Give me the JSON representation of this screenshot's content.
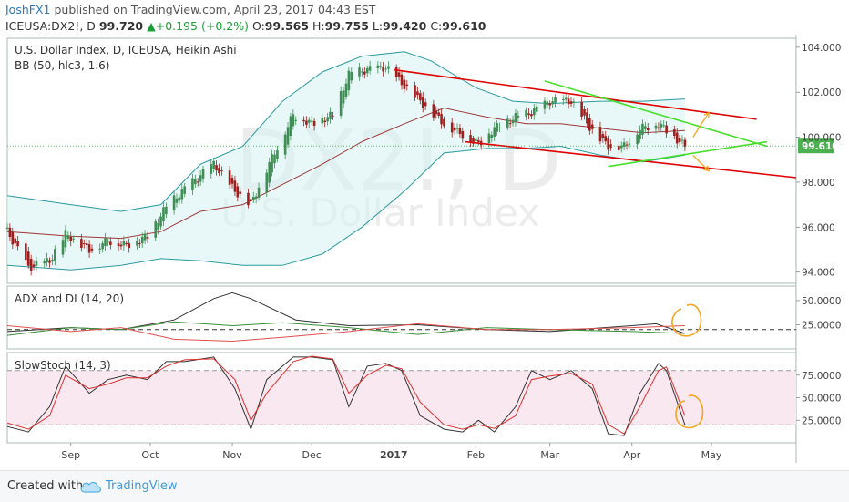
{
  "header": {
    "user": "JoshFX1",
    "published_text": "published on TradingView.com, April 23, 2017 04:43 EST",
    "symbol": "ICEUSA:DX2!, D",
    "last": "99.720",
    "change": "+0.195 (+0.2%)",
    "open_label": "O:",
    "open": "99.565",
    "high_label": "H:",
    "high": "99.755",
    "low_label": "L:",
    "low": "99.420",
    "close_label": "C:",
    "close": "99.610"
  },
  "footer": {
    "created_with": "Created with",
    "brand": "TradingView"
  },
  "colors": {
    "bull": "#3f8f55",
    "bear": "#a11e1e",
    "bb_fill": "#d9f2f2",
    "bb_band": "#2b9aa0",
    "bb_mid": "#a03a3a",
    "channel": "#e00000",
    "wedge": "#46e02a",
    "arrow": "#f5a623",
    "price_tag": "#4caf50",
    "adx": "#333333",
    "di_plus": "#3a8f3a",
    "di_minus": "#e05050",
    "stoch_k": "#333333",
    "stoch_d": "#e03030",
    "stoch_band": "#f9e8ef"
  },
  "chart_data": [
    {
      "type": "candlestick",
      "title": "U.S. Dollar Index, D, ICEUSA, Heikin Ashi",
      "indicator": "BB (50, hlc3, 1.6)",
      "watermark_symbol": "DX2!, D",
      "watermark_name": "U.S. Dollar Index",
      "y_ticks": [
        "104.000",
        "102.000",
        "100.000",
        "98.000",
        "96.000",
        "94.000"
      ],
      "ylim": [
        93.5,
        104.4
      ],
      "last_price_label": "99.610",
      "last_price": 99.61,
      "x_labels": [
        "Sep",
        "Oct",
        "Nov",
        "Dec",
        "2017",
        "Feb",
        "Mar",
        "Apr",
        "May"
      ],
      "x_label_dates": [
        "2016-09-01",
        "2016-10-01",
        "2016-11-01",
        "2016-12-01",
        "2017-01-01",
        "2017-02-01",
        "2017-03-01",
        "2017-04-01",
        "2017-05-01"
      ],
      "xlim": [
        "2016-08-08",
        "2017-06-02"
      ],
      "trend_points": [
        [
          "2016-08-08",
          95.8
        ],
        [
          "2016-08-16",
          94.2
        ],
        [
          "2016-08-24",
          94.5
        ],
        [
          "2016-08-30",
          95.7
        ],
        [
          "2016-09-08",
          95.0
        ],
        [
          "2016-09-15",
          95.4
        ],
        [
          "2016-09-22",
          95.2
        ],
        [
          "2016-09-30",
          95.6
        ],
        [
          "2016-10-07",
          96.9
        ],
        [
          "2016-10-14",
          97.7
        ],
        [
          "2016-10-25",
          98.8
        ],
        [
          "2016-11-02",
          97.6
        ],
        [
          "2016-11-08",
          97.0
        ],
        [
          "2016-11-14",
          98.6
        ],
        [
          "2016-11-24",
          101.0
        ],
        [
          "2016-12-01",
          100.6
        ],
        [
          "2016-12-09",
          101.0
        ],
        [
          "2016-12-15",
          102.8
        ],
        [
          "2016-12-22",
          103.0
        ],
        [
          "2016-12-29",
          103.1
        ],
        [
          "2017-01-04",
          102.4
        ],
        [
          "2017-01-11",
          101.6
        ],
        [
          "2017-01-20",
          100.6
        ],
        [
          "2017-01-27",
          100.1
        ],
        [
          "2017-02-02",
          99.7
        ],
        [
          "2017-02-08",
          100.4
        ],
        [
          "2017-02-16",
          100.9
        ],
        [
          "2017-02-22",
          101.1
        ],
        [
          "2017-03-01",
          101.6
        ],
        [
          "2017-03-09",
          101.6
        ],
        [
          "2017-03-17",
          100.3
        ],
        [
          "2017-03-23",
          99.6
        ],
        [
          "2017-03-29",
          99.6
        ],
        [
          "2017-04-04",
          100.4
        ],
        [
          "2017-04-11",
          100.6
        ],
        [
          "2017-04-14",
          100.3
        ],
        [
          "2017-04-21",
          99.6
        ]
      ],
      "upper_band": [
        [
          "2016-08-08",
          97.4
        ],
        [
          "2016-09-01",
          97.0
        ],
        [
          "2016-09-20",
          96.7
        ],
        [
          "2016-10-05",
          97.0
        ],
        [
          "2016-10-20",
          98.8
        ],
        [
          "2016-11-05",
          99.6
        ],
        [
          "2016-11-20",
          101.6
        ],
        [
          "2016-12-05",
          102.9
        ],
        [
          "2016-12-20",
          103.6
        ],
        [
          "2017-01-05",
          103.8
        ],
        [
          "2017-01-15",
          103.4
        ],
        [
          "2017-02-01",
          102.2
        ],
        [
          "2017-02-15",
          101.6
        ],
        [
          "2017-03-01",
          101.5
        ],
        [
          "2017-03-20",
          101.6
        ],
        [
          "2017-04-05",
          101.6
        ],
        [
          "2017-04-21",
          101.7
        ]
      ],
      "lower_band": [
        [
          "2016-08-08",
          94.3
        ],
        [
          "2016-09-01",
          94.1
        ],
        [
          "2016-09-20",
          94.3
        ],
        [
          "2016-10-05",
          94.6
        ],
        [
          "2016-10-20",
          94.5
        ],
        [
          "2016-11-05",
          94.3
        ],
        [
          "2016-11-20",
          94.3
        ],
        [
          "2016-12-05",
          94.8
        ],
        [
          "2016-12-20",
          96.0
        ],
        [
          "2017-01-05",
          97.6
        ],
        [
          "2017-01-20",
          99.3
        ],
        [
          "2017-02-05",
          99.5
        ],
        [
          "2017-02-20",
          99.5
        ],
        [
          "2017-03-05",
          99.6
        ],
        [
          "2017-03-20",
          99.2
        ],
        [
          "2017-04-05",
          98.9
        ],
        [
          "2017-04-21",
          99.2
        ]
      ],
      "middle_band": [
        [
          "2016-08-08",
          95.8
        ],
        [
          "2016-09-01",
          95.6
        ],
        [
          "2016-09-20",
          95.5
        ],
        [
          "2016-10-05",
          95.8
        ],
        [
          "2016-10-20",
          96.7
        ],
        [
          "2016-11-05",
          97.0
        ],
        [
          "2016-11-20",
          97.9
        ],
        [
          "2016-12-05",
          98.8
        ],
        [
          "2016-12-20",
          99.8
        ],
        [
          "2017-01-05",
          100.6
        ],
        [
          "2017-01-20",
          101.3
        ],
        [
          "2017-02-05",
          100.9
        ],
        [
          "2017-02-20",
          100.6
        ],
        [
          "2017-03-05",
          100.6
        ],
        [
          "2017-03-20",
          100.4
        ],
        [
          "2017-04-05",
          100.2
        ],
        [
          "2017-04-21",
          100.3
        ]
      ],
      "channel_lines": [
        [
          [
            "2017-01-01",
            103.0
          ],
          [
            "2017-05-18",
            100.8
          ]
        ],
        [
          [
            "2017-01-28",
            99.8
          ],
          [
            "2017-06-02",
            98.2
          ]
        ]
      ],
      "wedge_lines": [
        [
          [
            "2017-02-27",
            102.5
          ],
          [
            "2017-05-22",
            99.6
          ]
        ],
        [
          [
            "2017-03-23",
            98.7
          ],
          [
            "2017-05-22",
            99.8
          ]
        ]
      ],
      "arrows": [
        [
          [
            "2017-04-24",
            100.0
          ],
          [
            "2017-04-30",
            101.1
          ]
        ],
        [
          [
            "2017-04-24",
            99.2
          ],
          [
            "2017-04-30",
            98.5
          ]
        ]
      ]
    },
    {
      "type": "line",
      "title": "ADX and DI (14, 20)",
      "y_ticks": [
        "50.0000",
        "25.0000"
      ],
      "ylim": [
        0,
        65
      ],
      "reference_level": 20,
      "series": [
        {
          "key": "adx",
          "values": [
            [
              "2016-08-08",
              18
            ],
            [
              "2016-09-01",
              22
            ],
            [
              "2016-09-20",
              20
            ],
            [
              "2016-10-10",
              30
            ],
            [
              "2016-10-25",
              52
            ],
            [
              "2016-11-01",
              58
            ],
            [
              "2016-11-08",
              52
            ],
            [
              "2016-11-25",
              30
            ],
            [
              "2016-12-15",
              24
            ],
            [
              "2017-01-10",
              25
            ],
            [
              "2017-02-05",
              20
            ],
            [
              "2017-03-01",
              18
            ],
            [
              "2017-04-01",
              24
            ],
            [
              "2017-04-10",
              26
            ],
            [
              "2017-04-21",
              16
            ]
          ]
        },
        {
          "key": "di_plus",
          "values": [
            [
              "2016-08-08",
              14
            ],
            [
              "2016-09-01",
              22
            ],
            [
              "2016-09-20",
              20
            ],
            [
              "2016-10-10",
              28
            ],
            [
              "2016-11-01",
              24
            ],
            [
              "2016-11-20",
              27
            ],
            [
              "2016-12-15",
              22
            ],
            [
              "2017-01-10",
              15
            ],
            [
              "2017-02-05",
              22
            ],
            [
              "2017-03-01",
              20
            ],
            [
              "2017-04-01",
              18
            ],
            [
              "2017-04-21",
              16
            ]
          ]
        },
        {
          "key": "di_minus",
          "values": [
            [
              "2016-08-08",
              24
            ],
            [
              "2016-09-01",
              18
            ],
            [
              "2016-09-20",
              22
            ],
            [
              "2016-10-10",
              10
            ],
            [
              "2016-11-01",
              8
            ],
            [
              "2016-11-20",
              12
            ],
            [
              "2016-12-15",
              18
            ],
            [
              "2017-01-10",
              26
            ],
            [
              "2017-02-05",
              20
            ],
            [
              "2017-03-01",
              20
            ],
            [
              "2017-04-01",
              22
            ],
            [
              "2017-04-21",
              24
            ]
          ]
        }
      ]
    },
    {
      "type": "line",
      "title": "SlowStoch (14, 3)",
      "y_ticks": [
        "75.0000",
        "50.0000",
        "25.0000"
      ],
      "ylim": [
        0,
        100
      ],
      "upper_level": 80,
      "lower_level": 20,
      "series": [
        {
          "key": "stoch_k",
          "values": [
            [
              "2016-08-08",
              18
            ],
            [
              "2016-08-16",
              12
            ],
            [
              "2016-08-24",
              40
            ],
            [
              "2016-08-30",
              85
            ],
            [
              "2016-09-08",
              55
            ],
            [
              "2016-09-15",
              70
            ],
            [
              "2016-09-22",
              75
            ],
            [
              "2016-09-30",
              70
            ],
            [
              "2016-10-07",
              90
            ],
            [
              "2016-10-14",
              90
            ],
            [
              "2016-10-25",
              95
            ],
            [
              "2016-11-02",
              60
            ],
            [
              "2016-11-08",
              15
            ],
            [
              "2016-11-14",
              70
            ],
            [
              "2016-11-24",
              95
            ],
            [
              "2016-12-01",
              95
            ],
            [
              "2016-12-09",
              92
            ],
            [
              "2016-12-15",
              40
            ],
            [
              "2016-12-22",
              85
            ],
            [
              "2016-12-29",
              88
            ],
            [
              "2017-01-04",
              80
            ],
            [
              "2017-01-11",
              30
            ],
            [
              "2017-01-20",
              15
            ],
            [
              "2017-01-27",
              12
            ],
            [
              "2017-02-02",
              25
            ],
            [
              "2017-02-08",
              12
            ],
            [
              "2017-02-16",
              40
            ],
            [
              "2017-02-22",
              80
            ],
            [
              "2017-03-01",
              70
            ],
            [
              "2017-03-09",
              80
            ],
            [
              "2017-03-17",
              60
            ],
            [
              "2017-03-23",
              10
            ],
            [
              "2017-03-29",
              8
            ],
            [
              "2017-04-04",
              55
            ],
            [
              "2017-04-11",
              88
            ],
            [
              "2017-04-14",
              80
            ],
            [
              "2017-04-21",
              20
            ]
          ]
        },
        {
          "key": "stoch_d",
          "values": [
            [
              "2016-08-08",
              22
            ],
            [
              "2016-08-16",
              15
            ],
            [
              "2016-08-24",
              30
            ],
            [
              "2016-08-30",
              75
            ],
            [
              "2016-09-08",
              60
            ],
            [
              "2016-09-15",
              65
            ],
            [
              "2016-09-22",
              72
            ],
            [
              "2016-09-30",
              72
            ],
            [
              "2016-10-07",
              85
            ],
            [
              "2016-10-14",
              92
            ],
            [
              "2016-10-25",
              93
            ],
            [
              "2016-11-02",
              70
            ],
            [
              "2016-11-08",
              25
            ],
            [
              "2016-11-14",
              55
            ],
            [
              "2016-11-24",
              90
            ],
            [
              "2016-12-01",
              96
            ],
            [
              "2016-12-09",
              93
            ],
            [
              "2016-12-15",
              55
            ],
            [
              "2016-12-22",
              75
            ],
            [
              "2016-12-29",
              86
            ],
            [
              "2017-01-04",
              82
            ],
            [
              "2017-01-11",
              45
            ],
            [
              "2017-01-20",
              20
            ],
            [
              "2017-01-27",
              15
            ],
            [
              "2017-02-02",
              20
            ],
            [
              "2017-02-08",
              16
            ],
            [
              "2017-02-16",
              30
            ],
            [
              "2017-02-22",
              70
            ],
            [
              "2017-03-01",
              74
            ],
            [
              "2017-03-09",
              77
            ],
            [
              "2017-03-17",
              65
            ],
            [
              "2017-03-23",
              20
            ],
            [
              "2017-03-29",
              10
            ],
            [
              "2017-04-04",
              40
            ],
            [
              "2017-04-11",
              80
            ],
            [
              "2017-04-14",
              84
            ],
            [
              "2017-04-21",
              30
            ]
          ]
        }
      ]
    }
  ]
}
